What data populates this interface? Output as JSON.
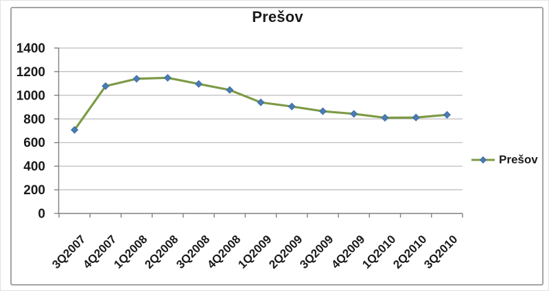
{
  "chart_data": {
    "type": "line",
    "title": "Prešov",
    "categories": [
      "3Q2007",
      "4Q2007",
      "1Q2008",
      "2Q2008",
      "3Q2008",
      "4Q2008",
      "1Q2009",
      "2Q2009",
      "3Q2009",
      "4Q2009",
      "1Q2010",
      "2Q2010",
      "3Q2010"
    ],
    "series": [
      {
        "name": "Prešov",
        "values": [
          707,
          1078,
          1140,
          1148,
          1096,
          1045,
          940,
          905,
          865,
          843,
          810,
          812,
          835
        ]
      }
    ],
    "xlabel": "",
    "ylabel": "",
    "ylim": [
      0,
      1400
    ],
    "ytick_step": 200,
    "yticks": [
      0,
      200,
      400,
      600,
      800,
      1000,
      1200,
      1400
    ],
    "grid": true,
    "legend_position": "right",
    "marker": "diamond",
    "colors": {
      "line": "#7d9a45",
      "marker_fill": "#4a7bb5",
      "marker_edge": "#3a689e",
      "grid": "#ababab",
      "axis": "#7f7f7f",
      "text": "#1a1a1a",
      "frame_border": "#a3a3a3"
    }
  }
}
